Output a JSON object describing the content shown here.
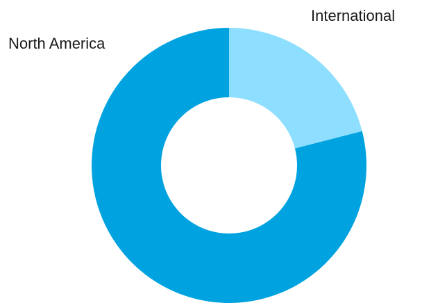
{
  "chart_data": {
    "type": "pie",
    "variant": "donut",
    "title": "",
    "legend": "none",
    "slices": [
      {
        "label": "International",
        "value": 21,
        "color": "#8EDFFF"
      },
      {
        "label": "North America",
        "value": 79,
        "color": "#00A3E0"
      }
    ]
  }
}
